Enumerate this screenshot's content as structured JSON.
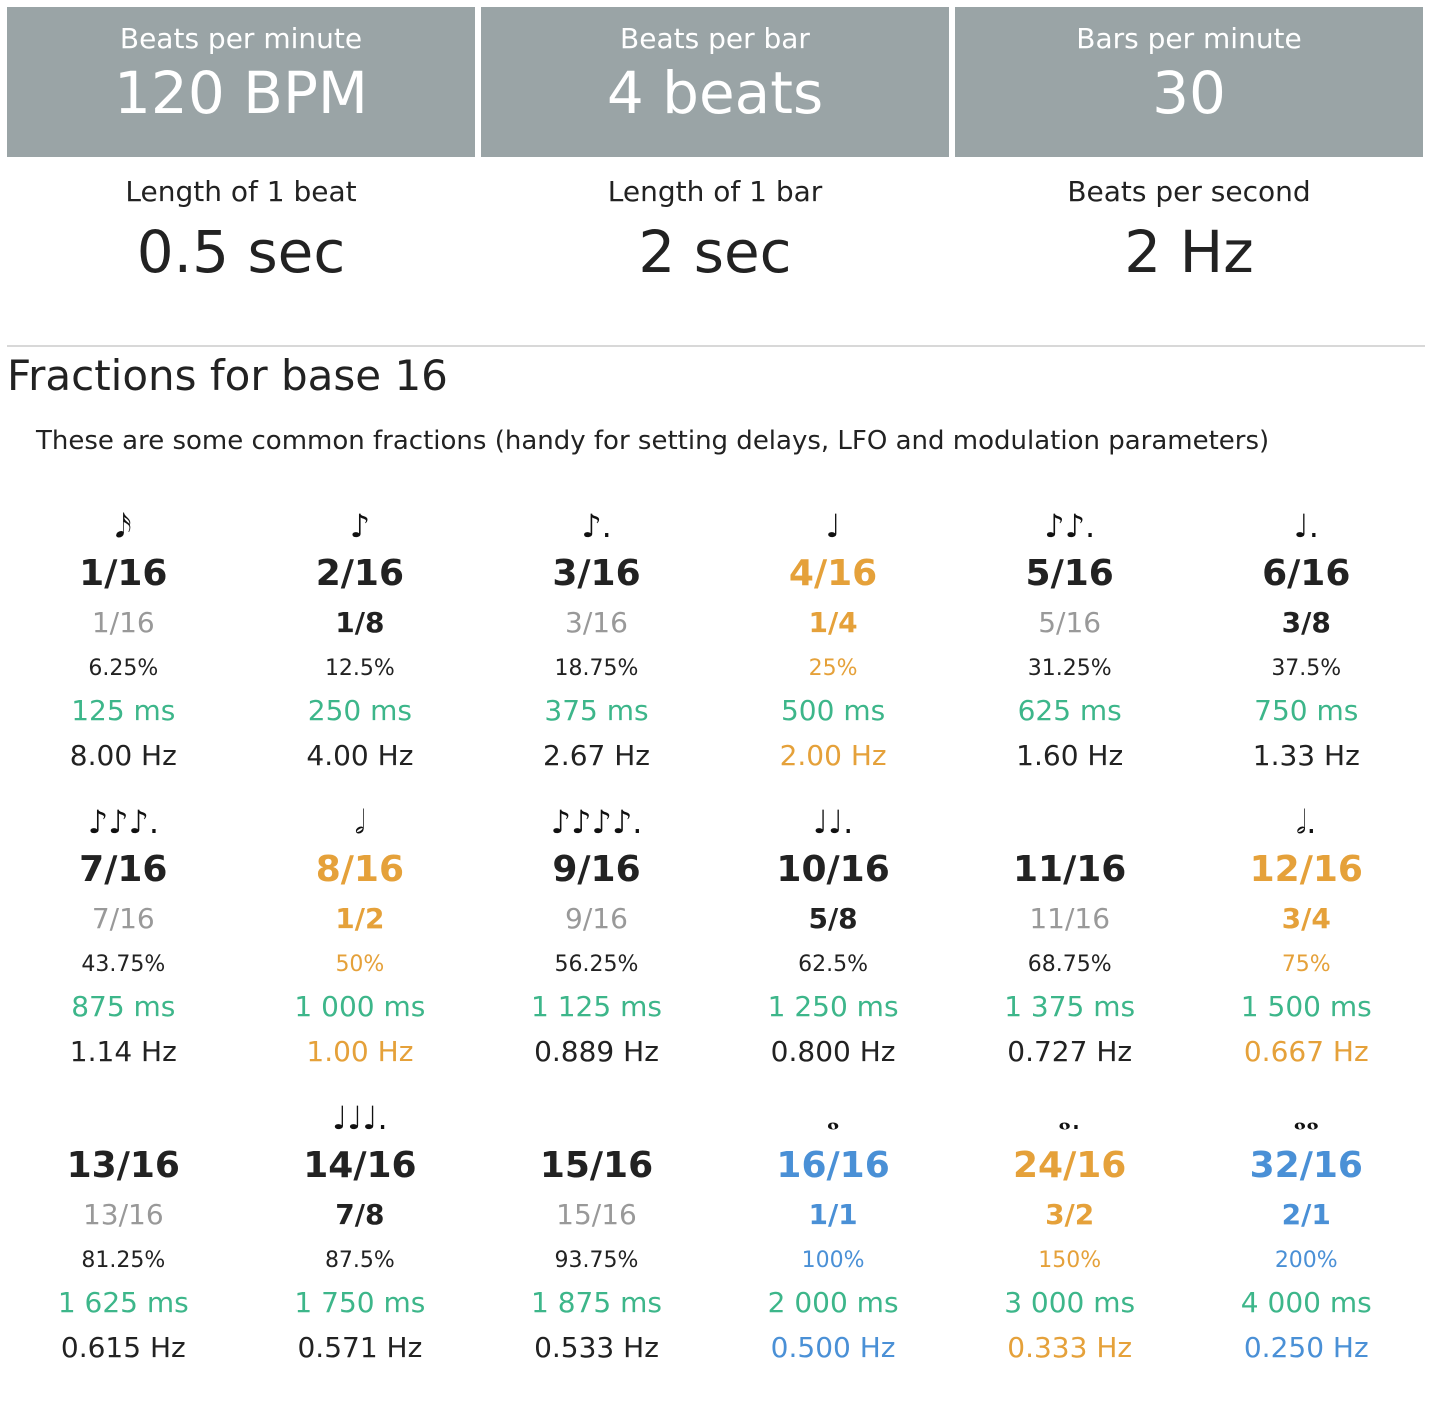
{
  "header": {
    "bpm": {
      "label": "Beats per minute",
      "value": "120 BPM"
    },
    "beats_per_bar": {
      "label": "Beats per bar",
      "value": "4 beats"
    },
    "bars_per_minute": {
      "label": "Bars per minute",
      "value": "30"
    }
  },
  "summary": {
    "beat_length": {
      "label": "Length of 1 beat",
      "value": "0.5 sec"
    },
    "bar_length": {
      "label": "Length of 1 bar",
      "value": "2 sec"
    },
    "beats_per_second": {
      "label": "Beats per second",
      "value": "2 Hz"
    }
  },
  "section": {
    "title": "Fractions for base 16",
    "description": "These are some common fractions (handy for setting delays, LFO and modulation parameters)"
  },
  "colors": {
    "dark": "#222222",
    "gray": "#999999",
    "orange": "#e5a13a",
    "blue": "#4a90d6",
    "green": "#3db68a",
    "header_bg": "#9aa4a6"
  },
  "fractions": [
    {
      "note": "𝅘𝅥𝅯",
      "frac": "1/16",
      "simp": "1/16",
      "pct": "6.25%",
      "ms": "125 ms",
      "hz": "8.00 Hz",
      "frac_color": "dark",
      "simp_color": "gray",
      "pct_color": "dark",
      "hz_color": "dark"
    },
    {
      "note": "♪",
      "frac": "2/16",
      "simp": "1/8",
      "pct": "12.5%",
      "ms": "250 ms",
      "hz": "4.00 Hz",
      "frac_color": "dark",
      "simp_color": "dark",
      "pct_color": "dark",
      "hz_color": "dark"
    },
    {
      "note": "♪.",
      "frac": "3/16",
      "simp": "3/16",
      "pct": "18.75%",
      "ms": "375 ms",
      "hz": "2.67 Hz",
      "frac_color": "dark",
      "simp_color": "gray",
      "pct_color": "dark",
      "hz_color": "dark"
    },
    {
      "note": "♩",
      "frac": "4/16",
      "simp": "1/4",
      "pct": "25%",
      "ms": "500 ms",
      "hz": "2.00 Hz",
      "frac_color": "orange",
      "simp_color": "orange",
      "pct_color": "orange",
      "hz_color": "orange"
    },
    {
      "note": "♪♪.",
      "frac": "5/16",
      "simp": "5/16",
      "pct": "31.25%",
      "ms": "625 ms",
      "hz": "1.60 Hz",
      "frac_color": "dark",
      "simp_color": "gray",
      "pct_color": "dark",
      "hz_color": "dark"
    },
    {
      "note": "♩.",
      "frac": "6/16",
      "simp": "3/8",
      "pct": "37.5%",
      "ms": "750 ms",
      "hz": "1.33 Hz",
      "frac_color": "dark",
      "simp_color": "dark",
      "pct_color": "dark",
      "hz_color": "dark"
    },
    {
      "note": "♪♪♪.",
      "frac": "7/16",
      "simp": "7/16",
      "pct": "43.75%",
      "ms": "875 ms",
      "hz": "1.14 Hz",
      "frac_color": "dark",
      "simp_color": "gray",
      "pct_color": "dark",
      "hz_color": "dark"
    },
    {
      "note": "𝅗𝅥",
      "frac": "8/16",
      "simp": "1/2",
      "pct": "50%",
      "ms": "1 000 ms",
      "hz": "1.00 Hz",
      "frac_color": "orange",
      "simp_color": "orange",
      "pct_color": "orange",
      "hz_color": "orange"
    },
    {
      "note": "♪♪♪♪.",
      "frac": "9/16",
      "simp": "9/16",
      "pct": "56.25%",
      "ms": "1 125 ms",
      "hz": "0.889 Hz",
      "frac_color": "dark",
      "simp_color": "gray",
      "pct_color": "dark",
      "hz_color": "dark"
    },
    {
      "note": "♩♩.",
      "frac": "10/16",
      "simp": "5/8",
      "pct": "62.5%",
      "ms": "1 250 ms",
      "hz": "0.800 Hz",
      "frac_color": "dark",
      "simp_color": "dark",
      "pct_color": "dark",
      "hz_color": "dark"
    },
    {
      "note": "",
      "frac": "11/16",
      "simp": "11/16",
      "pct": "68.75%",
      "ms": "1 375 ms",
      "hz": "0.727 Hz",
      "frac_color": "dark",
      "simp_color": "gray",
      "pct_color": "dark",
      "hz_color": "dark"
    },
    {
      "note": "𝅗𝅥.",
      "frac": "12/16",
      "simp": "3/4",
      "pct": "75%",
      "ms": "1 500 ms",
      "hz": "0.667 Hz",
      "frac_color": "orange",
      "simp_color": "orange",
      "pct_color": "orange",
      "hz_color": "orange"
    },
    {
      "note": "",
      "frac": "13/16",
      "simp": "13/16",
      "pct": "81.25%",
      "ms": "1 625 ms",
      "hz": "0.615 Hz",
      "frac_color": "dark",
      "simp_color": "gray",
      "pct_color": "dark",
      "hz_color": "dark"
    },
    {
      "note": "♩♩♩.",
      "frac": "14/16",
      "simp": "7/8",
      "pct": "87.5%",
      "ms": "1 750 ms",
      "hz": "0.571 Hz",
      "frac_color": "dark",
      "simp_color": "dark",
      "pct_color": "dark",
      "hz_color": "dark"
    },
    {
      "note": "",
      "frac": "15/16",
      "simp": "15/16",
      "pct": "93.75%",
      "ms": "1 875 ms",
      "hz": "0.533 Hz",
      "frac_color": "dark",
      "simp_color": "gray",
      "pct_color": "dark",
      "hz_color": "dark"
    },
    {
      "note": "𝅝",
      "frac": "16/16",
      "simp": "1/1",
      "pct": "100%",
      "ms": "2 000 ms",
      "hz": "0.500 Hz",
      "frac_color": "blue",
      "simp_color": "blue",
      "pct_color": "blue",
      "hz_color": "blue"
    },
    {
      "note": "𝅝.",
      "frac": "24/16",
      "simp": "3/2",
      "pct": "150%",
      "ms": "3 000 ms",
      "hz": "0.333 Hz",
      "frac_color": "orange",
      "simp_color": "orange",
      "pct_color": "orange",
      "hz_color": "orange"
    },
    {
      "note": "𝅝𝅝",
      "frac": "32/16",
      "simp": "2/1",
      "pct": "200%",
      "ms": "4 000 ms",
      "hz": "0.250 Hz",
      "frac_color": "blue",
      "simp_color": "blue",
      "pct_color": "blue",
      "hz_color": "blue"
    }
  ]
}
